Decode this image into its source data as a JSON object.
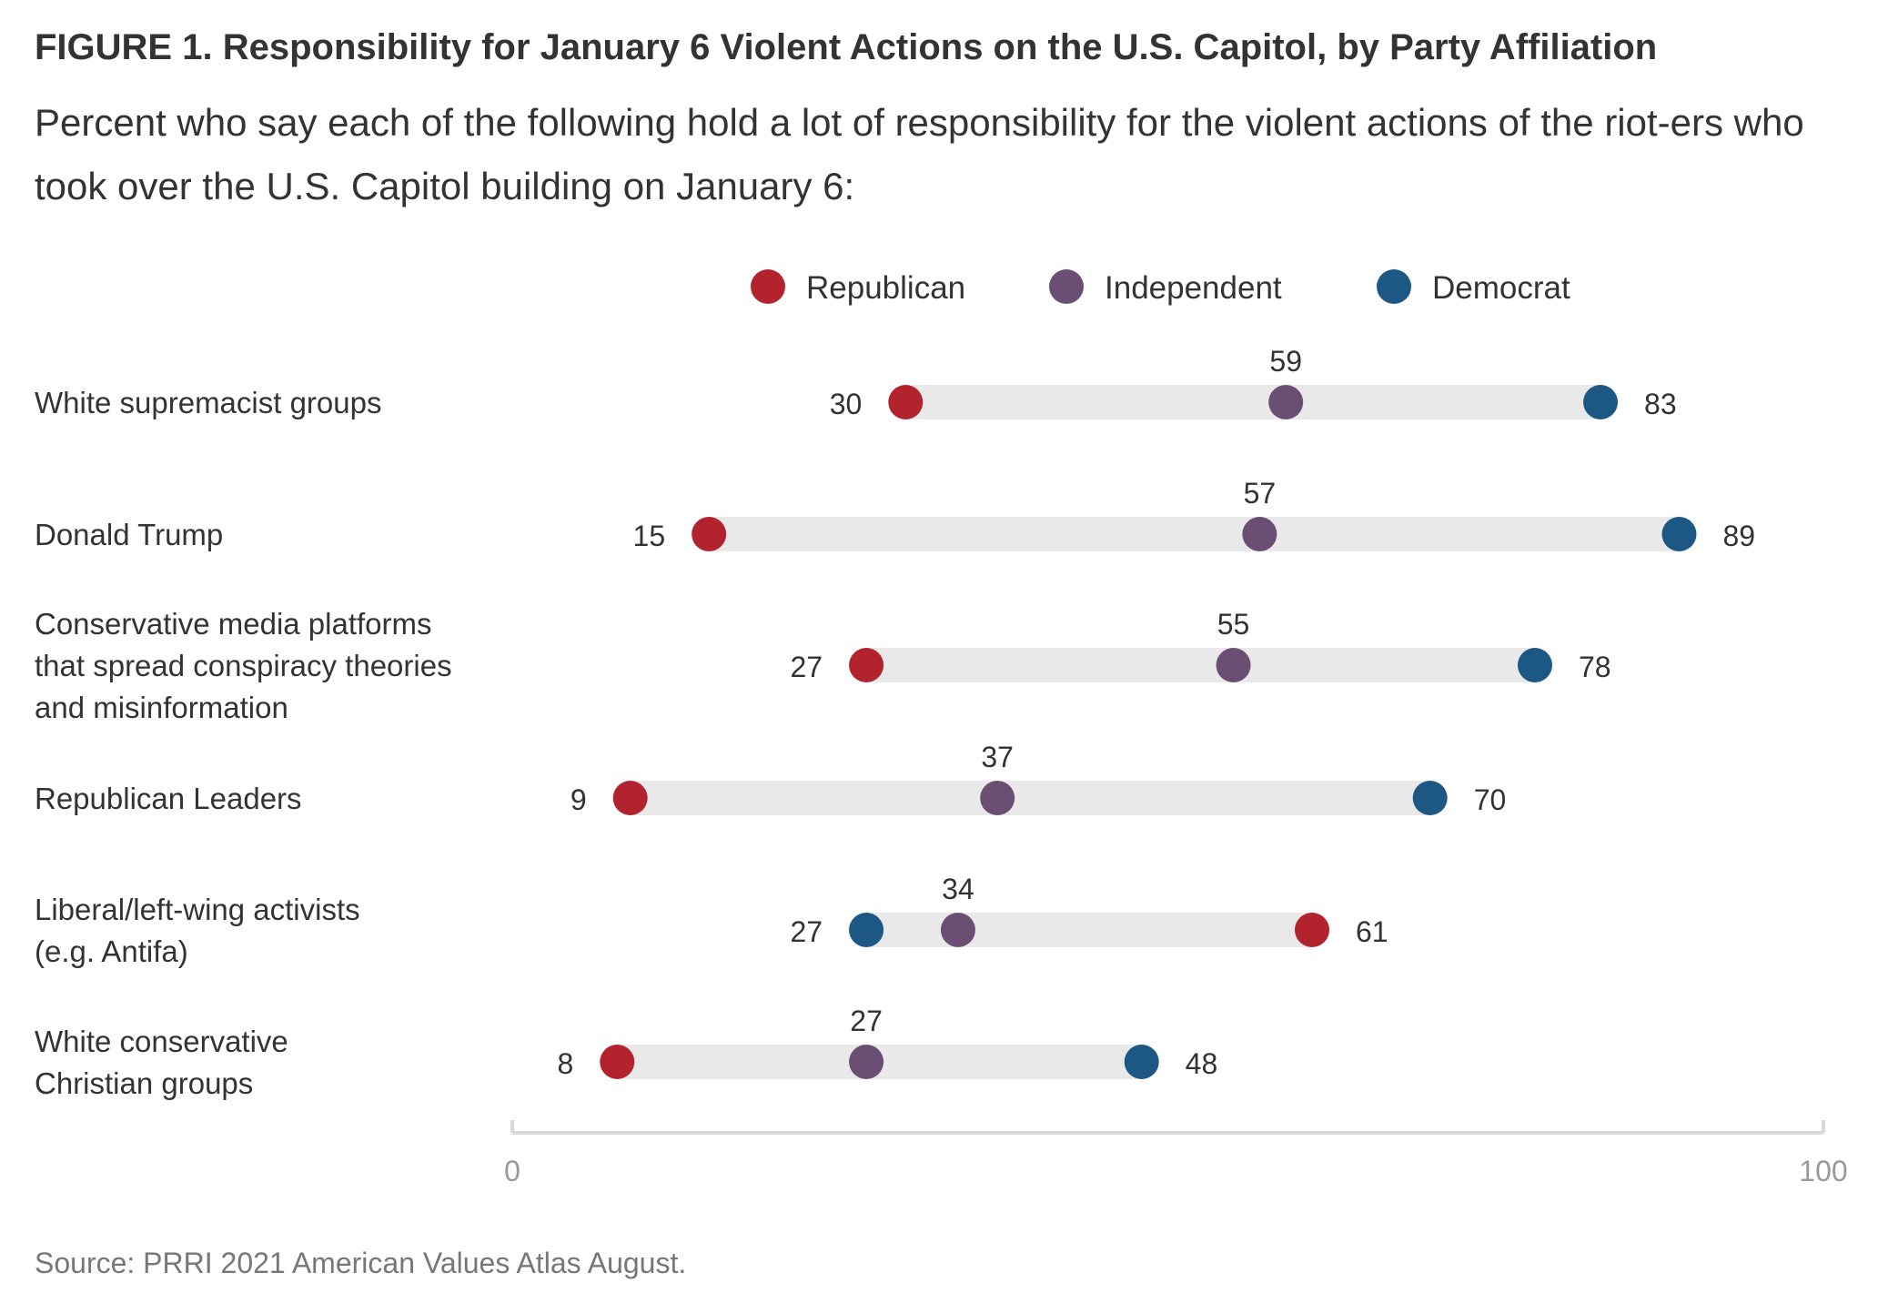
{
  "title": "FIGURE 1.  Responsibility for January 6 Violent Actions on the U.S. Capitol, by Party Affiliation",
  "subtitle": "Percent who say each of the following hold a lot of responsibility for the violent actions of the riot-ers who took over the U.S. Capitol building on January 6:",
  "source": "Source: PRRI 2021 American Values Atlas August.",
  "chart_data": {
    "type": "dumbbell",
    "xlim": [
      0,
      100
    ],
    "x_tick_labels": [
      "0",
      "100"
    ],
    "legend_position": "top",
    "colors": {
      "Republican": "#b3232d",
      "Independent": "#6a4e74",
      "Democrat": "#1d5784",
      "track": "#e9e9e9",
      "axis": "#d8d8d8"
    },
    "series": [
      {
        "name": "Republican",
        "values": [
          30,
          15,
          27,
          9,
          61,
          8
        ]
      },
      {
        "name": "Independent",
        "values": [
          59,
          57,
          55,
          37,
          34,
          27
        ]
      },
      {
        "name": "Democrat",
        "values": [
          83,
          89,
          78,
          70,
          27,
          48
        ]
      }
    ],
    "categories": [
      [
        "White supremacist groups"
      ],
      [
        "Donald Trump"
      ],
      [
        "Conservative media platforms",
        "that spread conspiracy theories",
        "and misinformation"
      ],
      [
        "Republican Leaders"
      ],
      [
        "Liberal/left-wing activists",
        "(e.g. Antifa)"
      ],
      [
        "White conservative",
        "Christian groups"
      ]
    ]
  }
}
